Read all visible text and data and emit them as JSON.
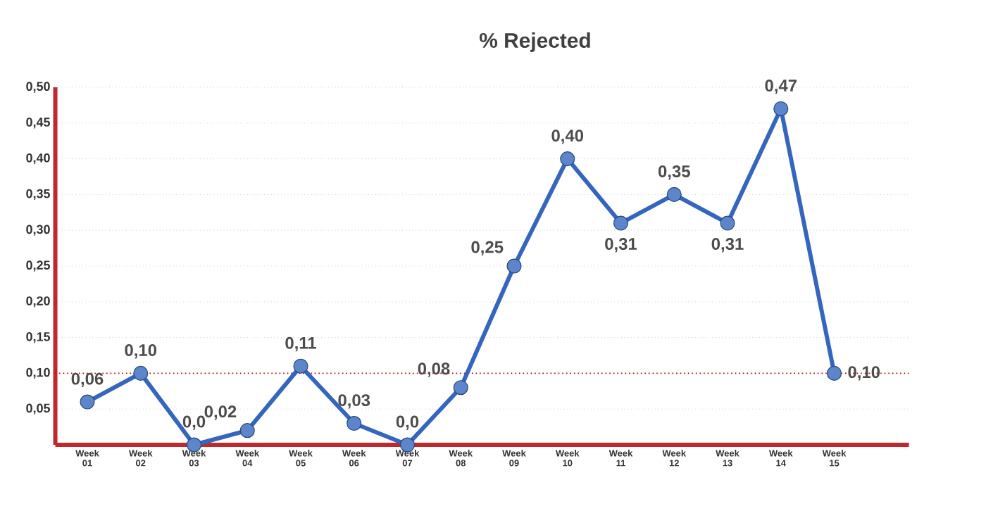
{
  "chart_data": {
    "type": "line",
    "title": "% Rejected",
    "categories": [
      "Week 01",
      "Week 02",
      "Week 03",
      "Week 04",
      "Week 05",
      "Week 06",
      "Week 07",
      "Week 08",
      "Week 09",
      "Week 10",
      "Week 11",
      "Week 12",
      "Week 13",
      "Week 14",
      "Week 15"
    ],
    "series": [
      {
        "color": "#3566bd",
        "values": [
          0.06,
          0.1,
          0.0,
          0.02,
          0.11,
          0.03,
          0.0,
          0.08,
          0.25,
          0.4,
          0.31,
          0.35,
          0.31,
          0.47,
          0.1
        ],
        "value_labels": [
          "0,06",
          "0,10",
          "0,0",
          "0,02",
          "0,11",
          "0,03",
          "0,0",
          "0,08",
          "0,25",
          "0,40",
          "0,31",
          "0,35",
          "0,31",
          "0,47",
          "0,10"
        ]
      }
    ],
    "ylim": [
      0,
      0.5
    ],
    "yticks": [
      {
        "value": 0.05,
        "label": "0,05"
      },
      {
        "value": 0.1,
        "label": "0,10"
      },
      {
        "value": 0.15,
        "label": "0,15"
      },
      {
        "value": 0.2,
        "label": "0,20"
      },
      {
        "value": 0.25,
        "label": "0,25"
      },
      {
        "value": 0.3,
        "label": "0,30"
      },
      {
        "value": 0.35,
        "label": "0,35"
      },
      {
        "value": 0.4,
        "label": "0,40"
      },
      {
        "value": 0.45,
        "label": "0,45"
      },
      {
        "value": 0.5,
        "label": "0,50"
      }
    ],
    "ref_lines": [
      {
        "axis": "y",
        "value": 0.1,
        "color": "#c00000",
        "line_style": "dotted"
      }
    ],
    "grid": "y",
    "marker": "circle",
    "line_style": "solid"
  }
}
